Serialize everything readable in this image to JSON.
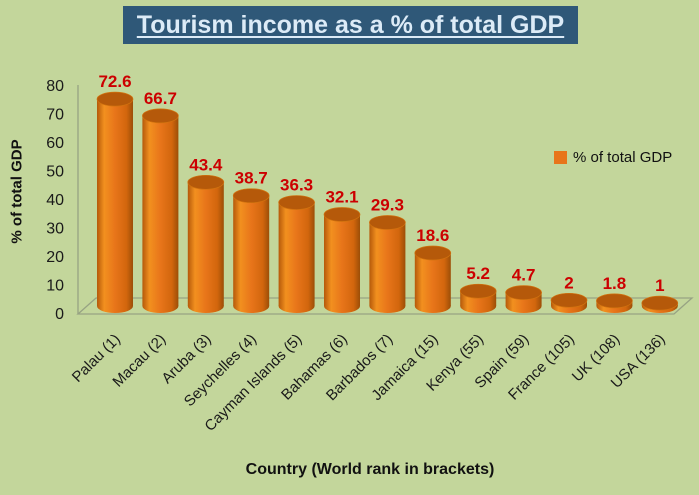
{
  "chart_data": {
    "type": "bar",
    "subtype": "3d-cylinder",
    "title": "Tourism income as a % of total GDP",
    "categories": [
      "Palau (1)",
      "Macau (2)",
      "Aruba (3)",
      "Seychelles (4)",
      "Cayman Islands (5)",
      "Bahamas (6)",
      "Barbados (7)",
      "Jamaica (15)",
      "Kenya (55)",
      "Spain (59)",
      "France (105)",
      "UK (108)",
      "USA (136)"
    ],
    "values": [
      72.6,
      66.7,
      43.4,
      38.7,
      36.3,
      32.1,
      29.3,
      18.6,
      5.2,
      4.7,
      2,
      1.8,
      1
    ],
    "value_labels": [
      "72.6",
      "66.7",
      "43.4",
      "38.7",
      "36.3",
      "32.1",
      "29.3",
      "18.6",
      "5.2",
      "4.7",
      "2",
      "1.8",
      "1"
    ],
    "xlabel": "Country (World rank in brackets)",
    "ylabel": "% of total GDP",
    "y_ticks": [
      0,
      10,
      20,
      30,
      40,
      50,
      60,
      70,
      80
    ],
    "ylim": [
      0,
      80
    ],
    "grid": false,
    "legend": {
      "position": "right",
      "entries": [
        "% of total GDP"
      ]
    },
    "colors": {
      "background": "#C3D69B",
      "title_bg": "#2F5878",
      "title_text": "#DCEBF7",
      "bar": "#E8751A",
      "bar_top": "#B5590A",
      "bar_dark_edge": "#9C4E07",
      "bar_highlight": "#F2901F",
      "value_label": "#CC0000",
      "axis_line": "#97A383",
      "text": "#1A1A1A"
    }
  }
}
